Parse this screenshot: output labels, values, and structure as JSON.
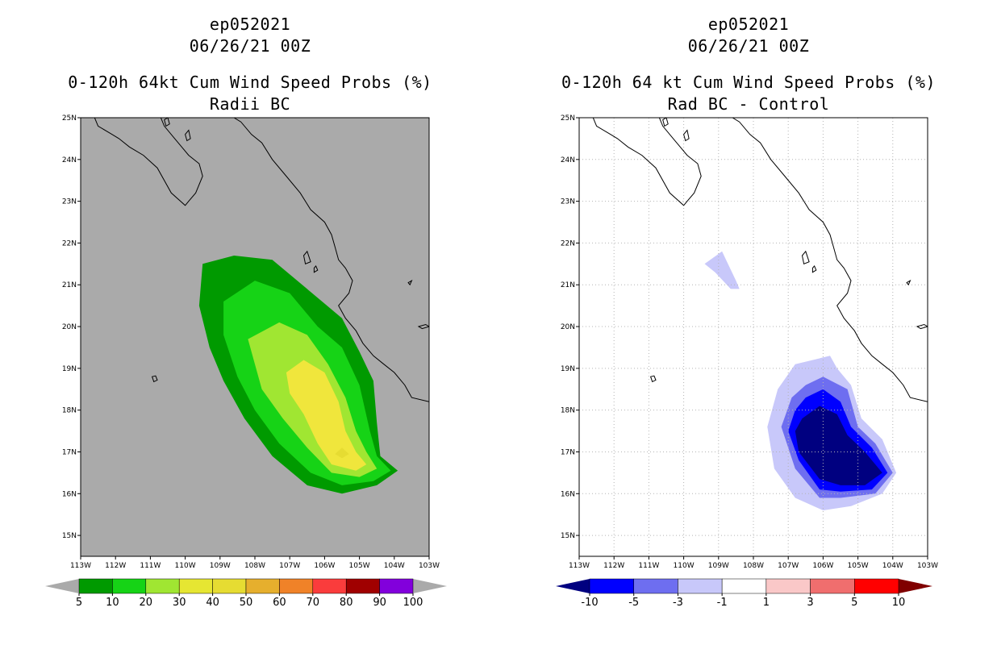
{
  "colors": {
    "land_bg_left": "#aaaaaa",
    "bg_right": "#ffffff",
    "coast": "#000000",
    "grid": "#b4b4b4"
  },
  "chart_data": [
    {
      "type": "contour_map",
      "storm_id": "ep052021",
      "date": "06/26/21 00Z",
      "title": "0-120h 64kt Cum Wind Speed Probs (%)",
      "subtitle": "Radii BC",
      "x_ticks": [
        "113W",
        "112W",
        "111W",
        "110W",
        "109W",
        "108W",
        "107W",
        "106W",
        "105W",
        "104W",
        "103W"
      ],
      "y_ticks": [
        "25N",
        "24N",
        "23N",
        "22N",
        "21N",
        "20N",
        "19N",
        "18N",
        "17N",
        "16N",
        "15N"
      ],
      "xlim": [
        -113,
        -103
      ],
      "ylim": [
        14.5,
        25
      ],
      "grid": false,
      "colorbar": {
        "levels": [
          "5",
          "10",
          "20",
          "30",
          "40",
          "50",
          "60",
          "70",
          "80",
          "90",
          "100"
        ],
        "colors": [
          "#009a00",
          "#16d316",
          "#a0e632",
          "#e6e632",
          "#e6dc32",
          "#e6af2d",
          "#f08228",
          "#fa3c3c",
          "#a00000",
          "#8200dc"
        ],
        "under_color": "#aaaaaa",
        "over_color": "#aaaaaa"
      },
      "contours": [
        {
          "level": "5-10",
          "color": "#009a00",
          "lonlat": [
            [
              -109.5,
              21.5
            ],
            [
              -108.6,
              21.7
            ],
            [
              -107.5,
              21.6
            ],
            [
              -106.5,
              20.9
            ],
            [
              -105.5,
              20.2
            ],
            [
              -105.0,
              19.4
            ],
            [
              -104.6,
              18.7
            ],
            [
              -104.5,
              17.7
            ],
            [
              -104.4,
              16.9
            ],
            [
              -103.9,
              16.55
            ],
            [
              -104.5,
              16.2
            ],
            [
              -105.5,
              16.0
            ],
            [
              -106.5,
              16.2
            ],
            [
              -107.5,
              16.9
            ],
            [
              -108.3,
              17.8
            ],
            [
              -108.9,
              18.7
            ],
            [
              -109.3,
              19.5
            ],
            [
              -109.6,
              20.5
            ]
          ]
        },
        {
          "level": "10-20",
          "color": "#16d316",
          "lonlat": [
            [
              -108.9,
              20.6
            ],
            [
              -108.0,
              21.1
            ],
            [
              -107.0,
              20.8
            ],
            [
              -106.2,
              20.0
            ],
            [
              -105.5,
              19.5
            ],
            [
              -105.0,
              18.6
            ],
            [
              -104.7,
              17.5
            ],
            [
              -104.5,
              16.9
            ],
            [
              -104.1,
              16.55
            ],
            [
              -104.6,
              16.3
            ],
            [
              -105.5,
              16.2
            ],
            [
              -106.4,
              16.5
            ],
            [
              -107.3,
              17.2
            ],
            [
              -108.0,
              18.0
            ],
            [
              -108.5,
              18.8
            ],
            [
              -108.9,
              19.8
            ]
          ]
        },
        {
          "level": "20-30",
          "color": "#a0e632",
          "lonlat": [
            [
              -108.2,
              19.7
            ],
            [
              -107.3,
              20.1
            ],
            [
              -106.5,
              19.8
            ],
            [
              -105.9,
              19.1
            ],
            [
              -105.4,
              18.3
            ],
            [
              -105.1,
              17.5
            ],
            [
              -104.8,
              17.0
            ],
            [
              -104.5,
              16.6
            ],
            [
              -105.0,
              16.4
            ],
            [
              -105.8,
              16.5
            ],
            [
              -106.5,
              17.1
            ],
            [
              -107.2,
              17.8
            ],
            [
              -107.8,
              18.5
            ]
          ]
        },
        {
          "level": "30-40",
          "color": "#f0e63c",
          "lonlat": [
            [
              -107.1,
              18.9
            ],
            [
              -106.6,
              19.2
            ],
            [
              -106.0,
              18.9
            ],
            [
              -105.6,
              18.2
            ],
            [
              -105.4,
              17.5
            ],
            [
              -105.1,
              17.0
            ],
            [
              -104.8,
              16.7
            ],
            [
              -105.1,
              16.55
            ],
            [
              -105.8,
              16.7
            ],
            [
              -106.2,
              17.2
            ],
            [
              -106.6,
              17.9
            ],
            [
              -107.0,
              18.4
            ]
          ]
        },
        {
          "level": "40-50",
          "color": "#e6dc32",
          "lonlat": [
            [
              -105.5,
              17.1
            ],
            [
              -105.3,
              16.95
            ],
            [
              -105.5,
              16.85
            ],
            [
              -105.7,
              16.95
            ]
          ]
        }
      ]
    },
    {
      "type": "contour_map",
      "storm_id": "ep052021",
      "date": "06/26/21 00Z",
      "title": "0-120h 64 kt Cum Wind Speed Probs (%)",
      "subtitle": "Rad BC - Control",
      "x_ticks": [
        "113W",
        "112W",
        "111W",
        "110W",
        "109W",
        "108W",
        "107W",
        "106W",
        "105W",
        "104W",
        "103W"
      ],
      "y_ticks": [
        "25N",
        "24N",
        "23N",
        "22N",
        "21N",
        "20N",
        "19N",
        "18N",
        "17N",
        "16N",
        "15N"
      ],
      "xlim": [
        -113,
        -103
      ],
      "ylim": [
        14.5,
        25
      ],
      "grid": true,
      "colorbar": {
        "levels": [
          "-10",
          "-5",
          "-3",
          "-1",
          "1",
          "3",
          "5",
          "10"
        ],
        "colors": [
          "#0000ff",
          "#6e6ef0",
          "#c8c8fa",
          "#ffffff",
          "#fac8c8",
          "#f06e6e",
          "#ff0000"
        ],
        "under_color": "#000080",
        "over_color": "#800000"
      },
      "contours": [
        {
          "level": "-3 to -1",
          "color": "#c8c8fa",
          "lonlat": [
            [
              -109.4,
              21.5
            ],
            [
              -108.9,
              21.8
            ],
            [
              -108.5,
              21.1
            ],
            [
              -108.4,
              20.9
            ],
            [
              -108.65,
              20.9
            ],
            [
              -109.1,
              21.3
            ]
          ]
        },
        {
          "level": "-3 to -1",
          "color": "#c8c8fa",
          "lonlat": [
            [
              -106.8,
              19.1
            ],
            [
              -105.8,
              19.3
            ],
            [
              -105.6,
              19.0
            ],
            [
              -105.2,
              18.6
            ],
            [
              -104.9,
              17.8
            ],
            [
              -104.3,
              17.3
            ],
            [
              -103.9,
              16.5
            ],
            [
              -104.3,
              16.0
            ],
            [
              -105.2,
              15.7
            ],
            [
              -106.0,
              15.6
            ],
            [
              -106.8,
              15.9
            ],
            [
              -107.4,
              16.6
            ],
            [
              -107.6,
              17.6
            ],
            [
              -107.3,
              18.5
            ]
          ]
        },
        {
          "level": "-5 to -3",
          "color": "#6e6ef0",
          "lonlat": [
            [
              -106.5,
              18.6
            ],
            [
              -106.0,
              18.8
            ],
            [
              -105.3,
              18.5
            ],
            [
              -105.0,
              17.6
            ],
            [
              -104.5,
              17.2
            ],
            [
              -104.0,
              16.5
            ],
            [
              -104.5,
              16.0
            ],
            [
              -105.5,
              15.9
            ],
            [
              -106.1,
              15.9
            ],
            [
              -106.8,
              16.6
            ],
            [
              -107.2,
              17.6
            ],
            [
              -106.9,
              18.3
            ]
          ]
        },
        {
          "level": "-10 to -5",
          "color": "#0000ff",
          "lonlat": [
            [
              -106.5,
              18.3
            ],
            [
              -106.0,
              18.5
            ],
            [
              -105.5,
              18.2
            ],
            [
              -105.2,
              17.6
            ],
            [
              -104.6,
              17.1
            ],
            [
              -104.15,
              16.5
            ],
            [
              -104.6,
              16.1
            ],
            [
              -105.5,
              16.05
            ],
            [
              -106.1,
              16.1
            ],
            [
              -106.7,
              16.8
            ],
            [
              -107.0,
              17.5
            ],
            [
              -106.8,
              18.0
            ]
          ]
        },
        {
          "level": "< -10",
          "color": "#000080",
          "lonlat": [
            [
              -106.6,
              17.8
            ],
            [
              -106.1,
              18.1
            ],
            [
              -105.6,
              17.9
            ],
            [
              -105.3,
              17.4
            ],
            [
              -104.8,
              17.0
            ],
            [
              -104.3,
              16.5
            ],
            [
              -104.8,
              16.2
            ],
            [
              -105.5,
              16.2
            ],
            [
              -106.1,
              16.35
            ],
            [
              -106.7,
              17.0
            ],
            [
              -106.8,
              17.5
            ]
          ]
        }
      ]
    }
  ]
}
